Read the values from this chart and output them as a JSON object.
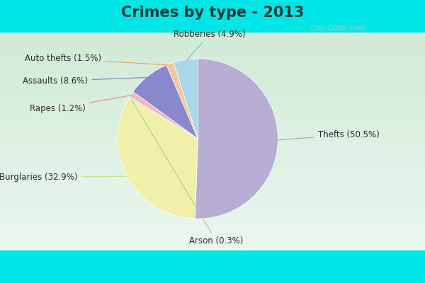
{
  "title": "Crimes by type - 2013",
  "slices": [
    {
      "label": "Thefts (50.5%)",
      "value": 50.5,
      "color": "#b8aed4"
    },
    {
      "label": "Burglaries (32.9%)",
      "value": 32.9,
      "color": "#f0f0a8"
    },
    {
      "label": "Arson (0.3%)",
      "value": 0.3,
      "color": "#c8dfc8"
    },
    {
      "label": "Rapes (1.2%)",
      "value": 1.2,
      "color": "#f5b8b8"
    },
    {
      "label": "Assaults (8.6%)",
      "value": 8.6,
      "color": "#8888cc"
    },
    {
      "label": "Auto thefts (1.5%)",
      "value": 1.5,
      "color": "#f5c89a"
    },
    {
      "label": "Robberies (4.9%)",
      "value": 4.9,
      "color": "#a8d8ea"
    }
  ],
  "title_fontsize": 15,
  "title_color": "#1a3a3a",
  "label_fontsize": 8.5,
  "line_colors": [
    "#aaaacc",
    "#d8d890",
    "#aaccaa",
    "#f09090",
    "#8888cc",
    "#f0a860",
    "#80c0d8"
  ],
  "cyan_color": "#00e5e5",
  "bg_color_top": "#d0ead8",
  "bg_color_bottom": "#e8f4ec",
  "watermark": "  City-Data.com",
  "watermark_icon": "ⓘ",
  "cyan_bar_height": 0.115,
  "cyan_bar_bottom": 0.0
}
